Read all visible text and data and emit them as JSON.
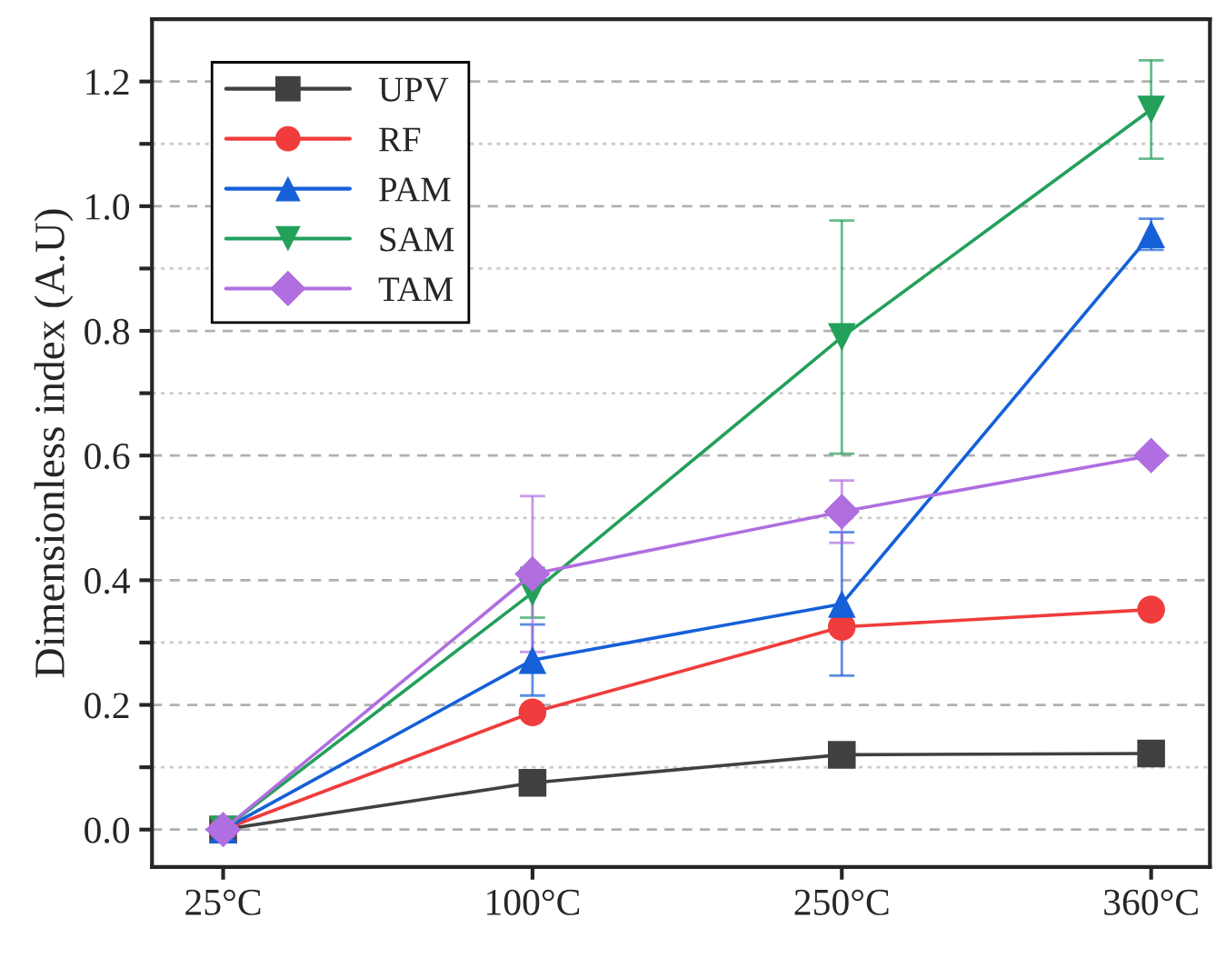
{
  "chart_data": {
    "type": "line",
    "ylabel": "Dimensionless index (A.U)",
    "categories": [
      "25°C",
      "100°C",
      "250°C",
      "360°C"
    ],
    "ylim": [
      -0.06,
      1.3
    ],
    "yticks": [
      {
        "value": 0,
        "label": "0.0"
      },
      {
        "value": 0.1,
        "label": null
      },
      0.2,
      {
        "value": 0.3,
        "label": null
      },
      0.4,
      {
        "value": 0.5,
        "label": null
      },
      0.6,
      {
        "value": 0.7,
        "label": null
      },
      0.8,
      {
        "value": 0.9,
        "label": null
      },
      {
        "value": 1,
        "label": "1.0"
      },
      {
        "value": 1.1,
        "label": null
      },
      1.2
    ],
    "grid": "y",
    "legend": "top left",
    "line_style": "solid",
    "series": [
      {
        "name": "UPV",
        "color": "#404040",
        "marker": "square",
        "values": [
          0,
          0.075,
          0.12,
          0.122
        ]
      },
      {
        "name": "RF",
        "color": "#f03c3c",
        "marker": "circle",
        "values": [
          0,
          0.188,
          0.325,
          0.353
        ]
      },
      {
        "name": "PAM",
        "color": "#1560d8",
        "marker": "triangle",
        "values": [
          0,
          0.272,
          0.362,
          0.955
        ],
        "errors": [
          null,
          0.057,
          0.115,
          0.025
        ]
      },
      {
        "name": "SAM",
        "color": "#23a05a",
        "marker": "triangle_down",
        "values": [
          0,
          0.38,
          0.79,
          1.155
        ],
        "errors": [
          null,
          0.04,
          0.187,
          0.079
        ]
      },
      {
        "name": "TAM",
        "color": "#b06ee0",
        "marker": "diamond",
        "values": [
          0,
          0.41,
          0.51,
          0.6
        ],
        "errors": [
          null,
          0.125,
          0.05,
          null
        ]
      }
    ]
  }
}
